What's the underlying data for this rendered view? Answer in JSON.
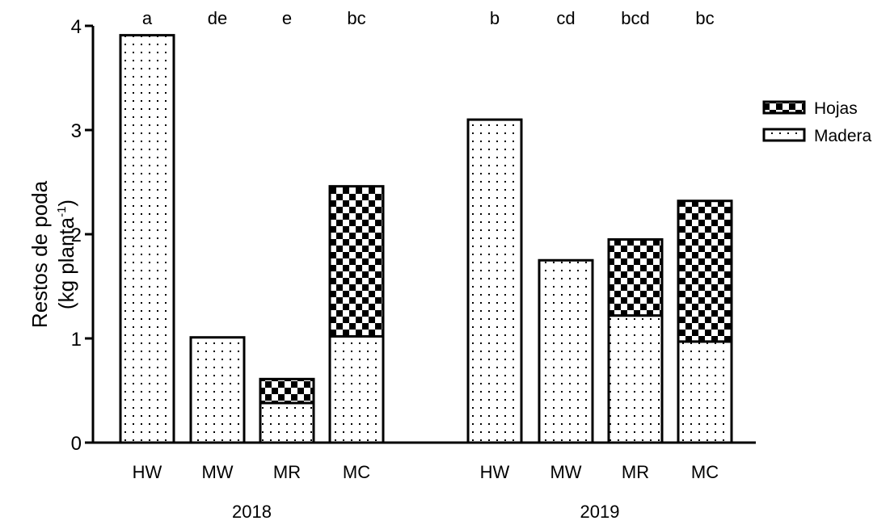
{
  "chart_data": {
    "type": "bar",
    "stacked": true,
    "ylabel_line1": "Restos de poda",
    "ylabel_line2_pre": "(kg planta",
    "ylabel_line2_sup": "-1",
    "ylabel_line2_post": ")",
    "ylim": [
      0,
      4
    ],
    "yticks": [
      "0",
      "1",
      "2",
      "3",
      "4"
    ],
    "groups": [
      "2018",
      "2019"
    ],
    "categories": [
      "HW",
      "MW",
      "MR",
      "MC",
      "HW",
      "MW",
      "MR",
      "MC"
    ],
    "group_of_category": [
      0,
      0,
      0,
      0,
      1,
      1,
      1,
      1
    ],
    "significance_letters": [
      "a",
      "de",
      "e",
      "bc",
      "b",
      "cd",
      "bcd",
      "bc"
    ],
    "series": [
      {
        "name": "Madera",
        "pattern": "dots",
        "values": [
          3.91,
          1.01,
          0.38,
          1.02,
          3.1,
          1.75,
          1.22,
          0.97
        ]
      },
      {
        "name": "Hojas",
        "pattern": "checker",
        "values": [
          0,
          0,
          0.23,
          1.44,
          0,
          0,
          0.73,
          1.35
        ]
      }
    ],
    "legend": {
      "position": "top-right",
      "order": [
        "Hojas",
        "Madera"
      ]
    }
  }
}
